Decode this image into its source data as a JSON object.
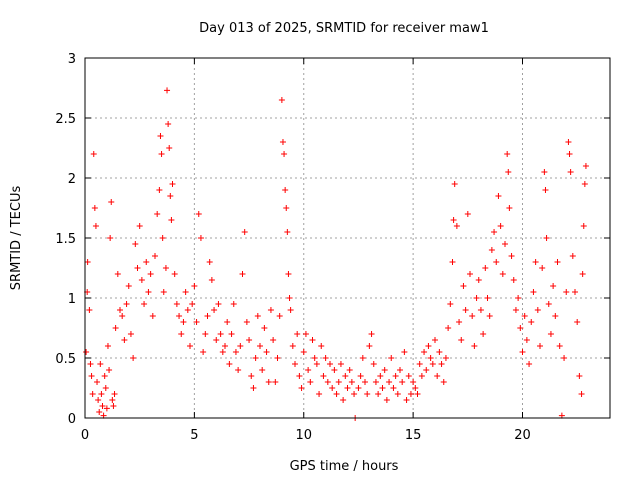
{
  "chart_data": {
    "type": "scatter",
    "title": "Day 013 of 2025, SRMTID for receiver maw1",
    "xlabel": "GPS time / hours",
    "ylabel": "SRMTID / TECUs",
    "xlim": [
      0,
      24
    ],
    "ylim": [
      0,
      3
    ],
    "xticks": [
      0,
      5,
      10,
      15,
      20
    ],
    "xtick_labels": [
      "0",
      "5",
      "10",
      "15",
      "20"
    ],
    "yticks": [
      0,
      0.5,
      1,
      1.5,
      2,
      2.5,
      3
    ],
    "ytick_labels": [
      "0",
      "0.5",
      "1",
      "1.5",
      "2",
      "2.5",
      "3"
    ],
    "grid": true,
    "marker": "+",
    "color": "#ff0000",
    "series": [
      {
        "name": "SRMTID",
        "points": [
          [
            0.05,
            0.55
          ],
          [
            0.1,
            1.05
          ],
          [
            0.12,
            1.3
          ],
          [
            0.2,
            0.9
          ],
          [
            0.25,
            0.45
          ],
          [
            0.3,
            0.35
          ],
          [
            0.35,
            0.2
          ],
          [
            0.4,
            2.2
          ],
          [
            0.45,
            1.75
          ],
          [
            0.5,
            1.6
          ],
          [
            0.55,
            0.3
          ],
          [
            0.6,
            0.15
          ],
          [
            0.65,
            0.05
          ],
          [
            0.7,
            0.45
          ],
          [
            0.75,
            0.2
          ],
          [
            0.8,
            0.1
          ],
          [
            0.85,
            0.02
          ],
          [
            0.9,
            0.35
          ],
          [
            0.95,
            0.25
          ],
          [
            1.0,
            0.08
          ],
          [
            1.05,
            0.6
          ],
          [
            1.1,
            0.4
          ],
          [
            1.15,
            1.5
          ],
          [
            1.2,
            1.8
          ],
          [
            1.25,
            0.15
          ],
          [
            1.3,
            0.1
          ],
          [
            1.35,
            0.2
          ],
          [
            1.4,
            0.75
          ],
          [
            1.5,
            1.2
          ],
          [
            1.6,
            0.9
          ],
          [
            1.7,
            0.85
          ],
          [
            1.8,
            0.65
          ],
          [
            1.9,
            0.95
          ],
          [
            2.0,
            1.1
          ],
          [
            2.1,
            0.7
          ],
          [
            2.2,
            0.5
          ],
          [
            2.3,
            1.45
          ],
          [
            2.4,
            1.25
          ],
          [
            2.5,
            1.6
          ],
          [
            2.6,
            1.15
          ],
          [
            2.7,
            0.95
          ],
          [
            2.8,
            1.3
          ],
          [
            2.9,
            1.05
          ],
          [
            3.0,
            1.2
          ],
          [
            3.1,
            0.85
          ],
          [
            3.2,
            1.35
          ],
          [
            3.3,
            1.7
          ],
          [
            3.4,
            1.9
          ],
          [
            3.45,
            2.35
          ],
          [
            3.5,
            2.2
          ],
          [
            3.55,
            1.5
          ],
          [
            3.6,
            1.05
          ],
          [
            3.7,
            1.25
          ],
          [
            3.75,
            2.73
          ],
          [
            3.8,
            2.45
          ],
          [
            3.85,
            2.25
          ],
          [
            3.9,
            1.85
          ],
          [
            3.95,
            1.65
          ],
          [
            4.0,
            1.95
          ],
          [
            4.1,
            1.2
          ],
          [
            4.2,
            0.95
          ],
          [
            4.3,
            0.85
          ],
          [
            4.4,
            0.7
          ],
          [
            4.5,
            0.8
          ],
          [
            4.6,
            1.05
          ],
          [
            4.7,
            0.9
          ],
          [
            4.8,
            0.6
          ],
          [
            4.9,
            0.95
          ],
          [
            5.0,
            1.1
          ],
          [
            5.1,
            0.8
          ],
          [
            5.2,
            1.7
          ],
          [
            5.3,
            1.5
          ],
          [
            5.4,
            0.55
          ],
          [
            5.5,
            0.7
          ],
          [
            5.6,
            0.85
          ],
          [
            5.7,
            1.3
          ],
          [
            5.8,
            1.15
          ],
          [
            5.9,
            0.9
          ],
          [
            6.0,
            0.65
          ],
          [
            6.1,
            0.95
          ],
          [
            6.2,
            0.7
          ],
          [
            6.3,
            0.55
          ],
          [
            6.4,
            0.6
          ],
          [
            6.5,
            0.8
          ],
          [
            6.6,
            0.45
          ],
          [
            6.7,
            0.7
          ],
          [
            6.8,
            0.95
          ],
          [
            6.9,
            0.55
          ],
          [
            7.0,
            0.4
          ],
          [
            7.1,
            0.6
          ],
          [
            7.2,
            1.2
          ],
          [
            7.3,
            1.55
          ],
          [
            7.4,
            0.8
          ],
          [
            7.5,
            0.65
          ],
          [
            7.6,
            0.35
          ],
          [
            7.7,
            0.25
          ],
          [
            7.8,
            0.5
          ],
          [
            7.9,
            0.85
          ],
          [
            8.0,
            0.6
          ],
          [
            8.1,
            0.4
          ],
          [
            8.2,
            0.75
          ],
          [
            8.3,
            0.55
          ],
          [
            8.4,
            0.3
          ],
          [
            8.5,
            0.9
          ],
          [
            8.6,
            0.65
          ],
          [
            8.7,
            0.3
          ],
          [
            8.8,
            0.5
          ],
          [
            8.9,
            0.85
          ],
          [
            9.0,
            2.65
          ],
          [
            9.05,
            2.3
          ],
          [
            9.1,
            2.2
          ],
          [
            9.15,
            1.9
          ],
          [
            9.2,
            1.75
          ],
          [
            9.25,
            1.55
          ],
          [
            9.3,
            1.2
          ],
          [
            9.35,
            1.0
          ],
          [
            9.4,
            0.9
          ],
          [
            9.5,
            0.6
          ],
          [
            9.6,
            0.45
          ],
          [
            9.7,
            0.7
          ],
          [
            9.8,
            0.35
          ],
          [
            9.9,
            0.25
          ],
          [
            10.0,
            0.55
          ],
          [
            10.1,
            0.7
          ],
          [
            10.2,
            0.4
          ],
          [
            10.3,
            0.3
          ],
          [
            10.4,
            0.65
          ],
          [
            10.5,
            0.5
          ],
          [
            10.6,
            0.45
          ],
          [
            10.7,
            0.2
          ],
          [
            10.8,
            0.6
          ],
          [
            10.9,
            0.35
          ],
          [
            11.0,
            0.5
          ],
          [
            11.1,
            0.3
          ],
          [
            11.2,
            0.45
          ],
          [
            11.3,
            0.25
          ],
          [
            11.4,
            0.4
          ],
          [
            11.5,
            0.2
          ],
          [
            11.6,
            0.3
          ],
          [
            11.7,
            0.45
          ],
          [
            11.8,
            0.15
          ],
          [
            11.9,
            0.35
          ],
          [
            12.0,
            0.25
          ],
          [
            12.1,
            0.4
          ],
          [
            12.2,
            0.3
          ],
          [
            12.3,
            0.2
          ],
          [
            12.35,
            0.0
          ],
          [
            12.5,
            0.25
          ],
          [
            12.6,
            0.35
          ],
          [
            12.7,
            0.5
          ],
          [
            12.8,
            0.3
          ],
          [
            12.9,
            0.2
          ],
          [
            13.0,
            0.6
          ],
          [
            13.1,
            0.7
          ],
          [
            13.2,
            0.45
          ],
          [
            13.3,
            0.3
          ],
          [
            13.4,
            0.2
          ],
          [
            13.5,
            0.35
          ],
          [
            13.6,
            0.25
          ],
          [
            13.7,
            0.4
          ],
          [
            13.8,
            0.15
          ],
          [
            13.9,
            0.3
          ],
          [
            14.0,
            0.5
          ],
          [
            14.1,
            0.25
          ],
          [
            14.2,
            0.35
          ],
          [
            14.3,
            0.2
          ],
          [
            14.4,
            0.4
          ],
          [
            14.5,
            0.3
          ],
          [
            14.6,
            0.55
          ],
          [
            14.7,
            0.15
          ],
          [
            14.8,
            0.35
          ],
          [
            14.9,
            0.2
          ],
          [
            15.0,
            0.3
          ],
          [
            15.1,
            0.25
          ],
          [
            15.2,
            0.2
          ],
          [
            15.3,
            0.45
          ],
          [
            15.4,
            0.35
          ],
          [
            15.5,
            0.55
          ],
          [
            15.6,
            0.4
          ],
          [
            15.7,
            0.6
          ],
          [
            15.8,
            0.5
          ],
          [
            15.9,
            0.45
          ],
          [
            16.0,
            0.65
          ],
          [
            16.1,
            0.35
          ],
          [
            16.2,
            0.55
          ],
          [
            16.3,
            0.45
          ],
          [
            16.4,
            0.3
          ],
          [
            16.5,
            0.5
          ],
          [
            16.6,
            0.75
          ],
          [
            16.7,
            0.95
          ],
          [
            16.8,
            1.3
          ],
          [
            16.85,
            1.65
          ],
          [
            16.9,
            1.95
          ],
          [
            17.0,
            1.6
          ],
          [
            17.1,
            0.8
          ],
          [
            17.2,
            0.65
          ],
          [
            17.3,
            1.1
          ],
          [
            17.4,
            0.9
          ],
          [
            17.5,
            1.7
          ],
          [
            17.6,
            1.2
          ],
          [
            17.7,
            0.85
          ],
          [
            17.8,
            0.6
          ],
          [
            17.9,
            1.0
          ],
          [
            18.0,
            1.15
          ],
          [
            18.1,
            0.9
          ],
          [
            18.2,
            0.7
          ],
          [
            18.3,
            1.25
          ],
          [
            18.4,
            1.0
          ],
          [
            18.5,
            0.85
          ],
          [
            18.6,
            1.4
          ],
          [
            18.7,
            1.55
          ],
          [
            18.8,
            1.3
          ],
          [
            18.9,
            1.85
          ],
          [
            19.0,
            1.6
          ],
          [
            19.1,
            1.2
          ],
          [
            19.2,
            1.45
          ],
          [
            19.3,
            2.2
          ],
          [
            19.35,
            2.05
          ],
          [
            19.4,
            1.75
          ],
          [
            19.5,
            1.35
          ],
          [
            19.6,
            1.15
          ],
          [
            19.7,
            0.9
          ],
          [
            19.8,
            1.0
          ],
          [
            19.9,
            0.75
          ],
          [
            20.0,
            0.55
          ],
          [
            20.1,
            0.85
          ],
          [
            20.2,
            0.65
          ],
          [
            20.3,
            0.45
          ],
          [
            20.4,
            0.8
          ],
          [
            20.5,
            1.05
          ],
          [
            20.6,
            1.3
          ],
          [
            20.7,
            0.9
          ],
          [
            20.8,
            0.6
          ],
          [
            20.9,
            1.25
          ],
          [
            21.0,
            2.05
          ],
          [
            21.05,
            1.9
          ],
          [
            21.1,
            1.5
          ],
          [
            21.2,
            0.95
          ],
          [
            21.3,
            0.7
          ],
          [
            21.4,
            1.1
          ],
          [
            21.5,
            0.85
          ],
          [
            21.6,
            1.3
          ],
          [
            21.7,
            0.6
          ],
          [
            21.8,
            0.02
          ],
          [
            21.9,
            0.5
          ],
          [
            22.0,
            1.05
          ],
          [
            22.1,
            2.3
          ],
          [
            22.15,
            2.2
          ],
          [
            22.2,
            2.05
          ],
          [
            22.3,
            1.35
          ],
          [
            22.4,
            1.05
          ],
          [
            22.5,
            0.8
          ],
          [
            22.6,
            0.35
          ],
          [
            22.7,
            0.2
          ],
          [
            22.75,
            1.2
          ],
          [
            22.8,
            1.6
          ],
          [
            22.85,
            1.95
          ],
          [
            22.9,
            2.1
          ]
        ]
      }
    ]
  }
}
